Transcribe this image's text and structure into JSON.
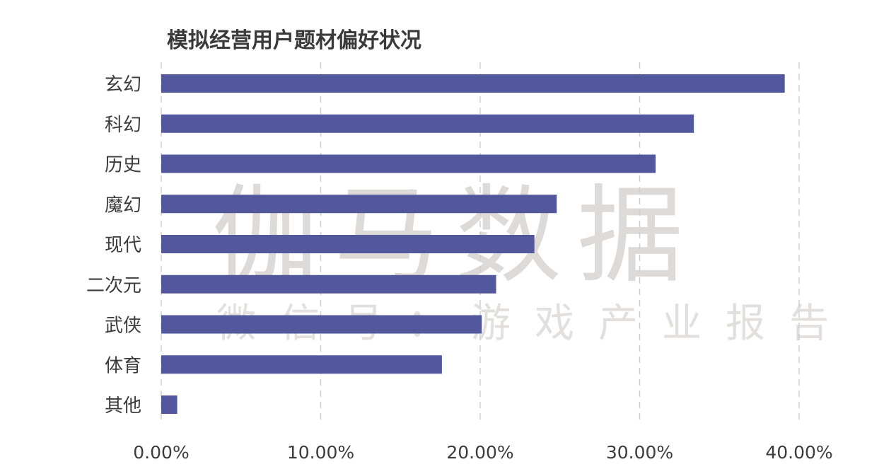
{
  "chart_data": {
    "type": "bar",
    "orientation": "horizontal",
    "title": "模拟经营用户题材偏好状况",
    "categories": [
      "玄幻",
      "科幻",
      "历史",
      "魔幻",
      "现代",
      "二次元",
      "武侠",
      "体育",
      "其他"
    ],
    "values": [
      39.1,
      33.4,
      31.0,
      24.8,
      23.4,
      21.0,
      20.1,
      17.6,
      1.0
    ],
    "xlim": [
      0,
      40
    ],
    "x_ticks": [
      0,
      10,
      20,
      30,
      40
    ],
    "x_tick_labels": [
      "0.00%",
      "10.00%",
      "20.00%",
      "30.00%",
      "40.00%"
    ],
    "grid": "vertical dashed",
    "legend": "none",
    "bar_color": "#52589b"
  },
  "watermark": {
    "main": "伽马数据",
    "sub": "微信号：游戏产业报告"
  }
}
